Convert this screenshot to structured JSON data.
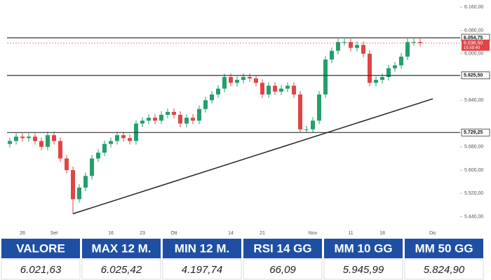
{
  "chart_data": {
    "type": "candlestick",
    "categories": [
      null,
      null,
      "26",
      null,
      null,
      null,
      null,
      "Set",
      null,
      null,
      null,
      null,
      null,
      null,
      null,
      null,
      "16",
      null,
      null,
      null,
      null,
      "23",
      null,
      null,
      null,
      null,
      "Ott",
      null,
      null,
      null,
      null,
      null,
      null,
      null,
      null,
      "14",
      null,
      null,
      null,
      null,
      "21",
      null,
      null,
      null,
      null,
      null,
      null,
      null,
      "Nov",
      null,
      null,
      null,
      null,
      null,
      "11",
      null,
      null,
      null,
      null,
      "18",
      null,
      null,
      null,
      null,
      null,
      null,
      null,
      "Dic"
    ],
    "open": [
      5690,
      5700,
      5715,
      5710,
      5715,
      5700,
      5680,
      5720,
      5700,
      5640,
      5600,
      5500,
      5540,
      5580,
      5640,
      5660,
      5690,
      5700,
      5720,
      5710,
      5700,
      5760,
      5770,
      5780,
      5770,
      5790,
      5800,
      5790,
      5760,
      5780,
      5770,
      5810,
      5840,
      5860,
      5880,
      5920,
      5900,
      5910,
      5920,
      5915,
      5900,
      5860,
      5890,
      5870,
      5880,
      5890,
      5860,
      5740,
      5740,
      5770,
      5860,
      5980,
      6010,
      6040,
      6040,
      6020,
      6030,
      6000,
      5900,
      5910,
      5920,
      5950,
      5960,
      5990,
      6040,
      6040,
      null,
      null
    ],
    "high": [
      5712,
      5727,
      5727,
      5727,
      5727,
      5712,
      5732,
      5732,
      5712,
      5652,
      5612,
      5552,
      5592,
      5652,
      5672,
      5702,
      5712,
      5732,
      5732,
      5722,
      5772,
      5782,
      5792,
      5792,
      5802,
      5812,
      5812,
      5802,
      5792,
      5792,
      5822,
      5852,
      5872,
      5892,
      5932,
      5932,
      5922,
      5932,
      5932,
      5927,
      5912,
      5902,
      5902,
      5892,
      5902,
      5902,
      5872,
      5752,
      5782,
      5872,
      5992,
      6022,
      6052,
      6052,
      6052,
      6042,
      6042,
      6012,
      5922,
      5932,
      5962,
      5972,
      6002,
      6052,
      6052,
      6052,
      null,
      null
    ],
    "low": [
      5678,
      5688,
      5698,
      5698,
      5688,
      5668,
      5668,
      5688,
      5628,
      5588,
      5450,
      5488,
      5528,
      5568,
      5628,
      5648,
      5678,
      5688,
      5698,
      5688,
      5688,
      5748,
      5758,
      5758,
      5758,
      5778,
      5778,
      5748,
      5748,
      5758,
      5758,
      5798,
      5828,
      5848,
      5868,
      5888,
      5888,
      5898,
      5903,
      5888,
      5848,
      5848,
      5858,
      5858,
      5868,
      5848,
      5728,
      5728,
      5728,
      5758,
      5848,
      5968,
      5998,
      6028,
      6008,
      6008,
      5988,
      5888,
      5888,
      5898,
      5908,
      5938,
      5948,
      5978,
      6028,
      6024.5,
      null,
      null
    ],
    "close": [
      5700,
      5715,
      5710,
      5715,
      5700,
      5680,
      5720,
      5700,
      5640,
      5600,
      5500,
      5540,
      5580,
      5640,
      5660,
      5690,
      5700,
      5720,
      5710,
      5700,
      5760,
      5770,
      5780,
      5770,
      5790,
      5800,
      5790,
      5760,
      5780,
      5770,
      5810,
      5840,
      5860,
      5880,
      5920,
      5900,
      5910,
      5920,
      5915,
      5900,
      5860,
      5890,
      5870,
      5880,
      5890,
      5860,
      5740,
      5740,
      5770,
      5860,
      5980,
      6010,
      6040,
      6040,
      6020,
      6030,
      6000,
      5900,
      5910,
      5920,
      5950,
      5960,
      5990,
      6040,
      6040,
      6036.5,
      null,
      null
    ],
    "up_color": "#22a06b",
    "down_color": "#e04545",
    "ylim": [
      5410,
      6175
    ],
    "yticks": [
      {
        "value": 6160,
        "label": "6.160,00"
      },
      {
        "value": 6080,
        "label": "6.080,00"
      },
      {
        "value": 6000,
        "label": "6.000,00"
      },
      {
        "value": 5840,
        "label": "5.840,00"
      },
      {
        "value": 5680,
        "label": "5.680,00"
      },
      {
        "value": 5600,
        "label": "5.600,00"
      },
      {
        "value": 5520,
        "label": "5.520,00"
      },
      {
        "value": 5440,
        "label": "5.440,00"
      }
    ],
    "levels": [
      {
        "value": 6054.75,
        "label": "6.054,75"
      },
      {
        "value": 5925.5,
        "label": "5.925,50"
      },
      {
        "value": 5729.25,
        "label": "5.729,25"
      }
    ],
    "last": {
      "value": 6036.5,
      "label": "6.036,50",
      "time": "15:59:40"
    },
    "trendline": {
      "x": [
        10,
        67
      ],
      "y": [
        5450,
        5845
      ]
    }
  },
  "table": {
    "headers": [
      "VALORE",
      "MAX 12 M.",
      "MIN 12 M.",
      "RSI 14 GG",
      "MM 10 GG",
      "MM 50 GG"
    ],
    "values": [
      "6.021,63",
      "6.025,42",
      "4.197,74",
      "66,09",
      "5.945,99",
      "5.824,90"
    ]
  }
}
